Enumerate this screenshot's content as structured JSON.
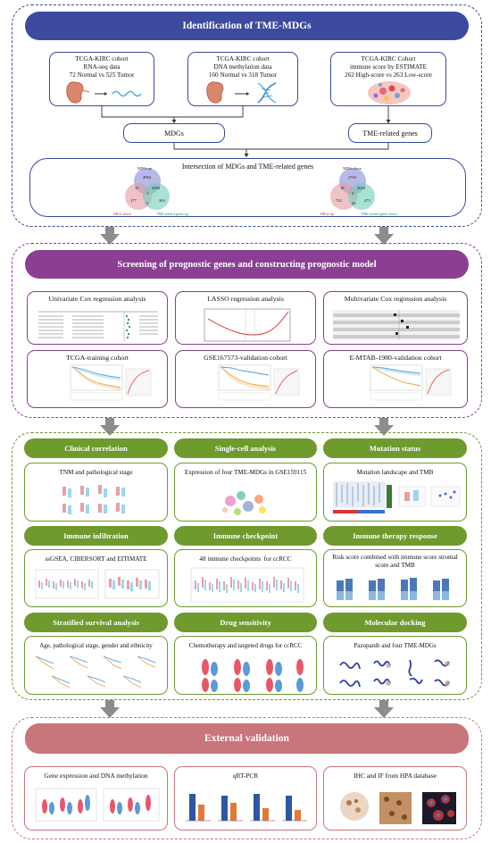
{
  "s1": {
    "title": "Identification of TME-MDGs",
    "box1": {
      "l1": "TCGA-KIRC cohort",
      "l2": "RNA-seq data",
      "l3": "72 Normal vs 525 Tumor"
    },
    "box2": {
      "l1": "TCGA-KIRC cohort",
      "l2": "DNA methylation data",
      "l3": "160 Normal vs 318 Tumor"
    },
    "box3": {
      "l1": "TCGA-KIRC Cohort",
      "l2": "immune score by ESTIMATE",
      "l3": "262 High-score vs 263 Low-score"
    },
    "mdgs": "MDGs",
    "tme": "TME-related genes",
    "intersection": "Intersection of MDGs and TME-related genes",
    "venn1": {
      "top": "MDGs up",
      "left": "DEGs down",
      "right": "TME-related genes up",
      "n_top": "4994",
      "n_l": "177",
      "n_r": "263",
      "n_tl": "13",
      "n_tr": "2090",
      "n_lr": "5",
      "n_c": "1"
    },
    "venn2": {
      "top": "MDGs down",
      "left": "DEGs up",
      "right": "TME-related genes down",
      "n_top": "2716",
      "n_l": "723",
      "n_r": "473",
      "n_tl": "18",
      "n_tr": "2010",
      "n_lr": "42",
      "n_c": "3"
    }
  },
  "s2": {
    "title": "Screening of prognostic genes and constructing prognostic model",
    "b1": "Univariate Cox regression analysis",
    "b2": "LASSO regression analysis",
    "b3": "Multivariate Cox regression analysis",
    "b4": "TCGA-training cohort",
    "b5": "GSE167573-validation cohort",
    "b6": "E-MTAB-1980-validation cohort"
  },
  "s3": {
    "p1": "Clinical correlation",
    "p2": "Single-cell analysis",
    "p3": "Mutation status",
    "b1": "TNM and pathological stage",
    "b2": "Expression of four TME-MDGs in GSE159115",
    "b3": "Mutation landscape and TMB",
    "p4": "Immune infiltration",
    "p5": "Immune checkpoint",
    "p6": "Immune therapy response",
    "b4": "ssGSEA, CIBERSORT and EITIMATE",
    "b5": "48 immune checkpoints  for ccRCC",
    "b6a": "Risk score combined with immune score stromal",
    "b6b": "score and TMB",
    "p7": "Stratified survival analysis",
    "p8": "Drug sensitivity",
    "p9": "Molecular docking",
    "b7": "Age, pathological stage, gender and ethnicity",
    "b8": "Chemotherapy and targeted drugs for ccRCC",
    "b9": "Pazopanib and four TME-MDGs"
  },
  "s4": {
    "title": "External validation",
    "b1": "Gene expression and DNA methylation",
    "b2": "qRT-PCR",
    "b3": "IHC and IF from HPA database"
  },
  "colors": {
    "blue": "#3a4ba0",
    "purple": "#8a3f93",
    "green": "#6e9a2e",
    "pink": "#c8757b",
    "arrow": "#8c8c8c"
  }
}
